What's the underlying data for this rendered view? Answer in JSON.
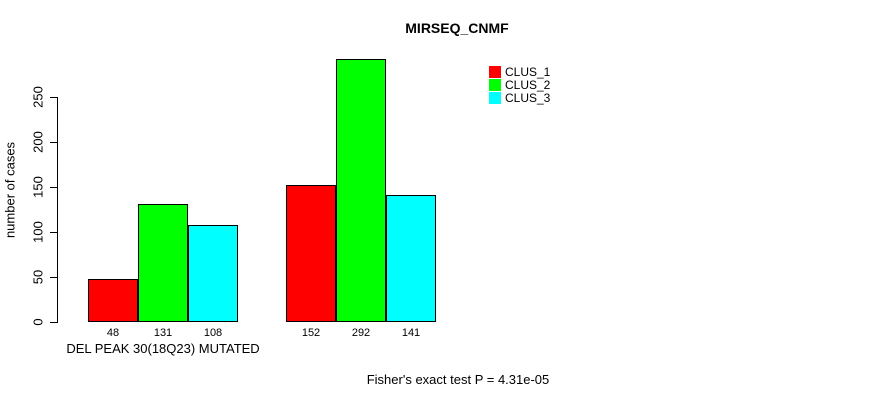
{
  "chart_data": {
    "type": "bar",
    "title": "MIRSEQ_CNMF",
    "ylabel": "number of cases",
    "xlabel": "",
    "categories": [
      "DEL PEAK 30(18Q23) MUTATED",
      ""
    ],
    "series": [
      {
        "name": "CLUS_1",
        "color": "#FF0000",
        "values": [
          48,
          152
        ]
      },
      {
        "name": "CLUS_2",
        "color": "#00FF00",
        "values": [
          131,
          292
        ]
      },
      {
        "name": "CLUS_3",
        "color": "#00FFFF",
        "values": [
          108,
          141
        ]
      }
    ],
    "yticks": [
      0,
      50,
      100,
      150,
      200,
      250
    ],
    "ylim": [
      0,
      292
    ],
    "bar_value_labels_shown": true,
    "grid": "off",
    "legend_position": "top-right",
    "annotation": "Fisher's exact test P = 4.31e-05"
  },
  "colors": {
    "axis": "#000000",
    "background": "#FFFFFF",
    "clus_1": "#FF0000",
    "clus_2": "#00FF00",
    "clus_3": "#00FFFF"
  }
}
